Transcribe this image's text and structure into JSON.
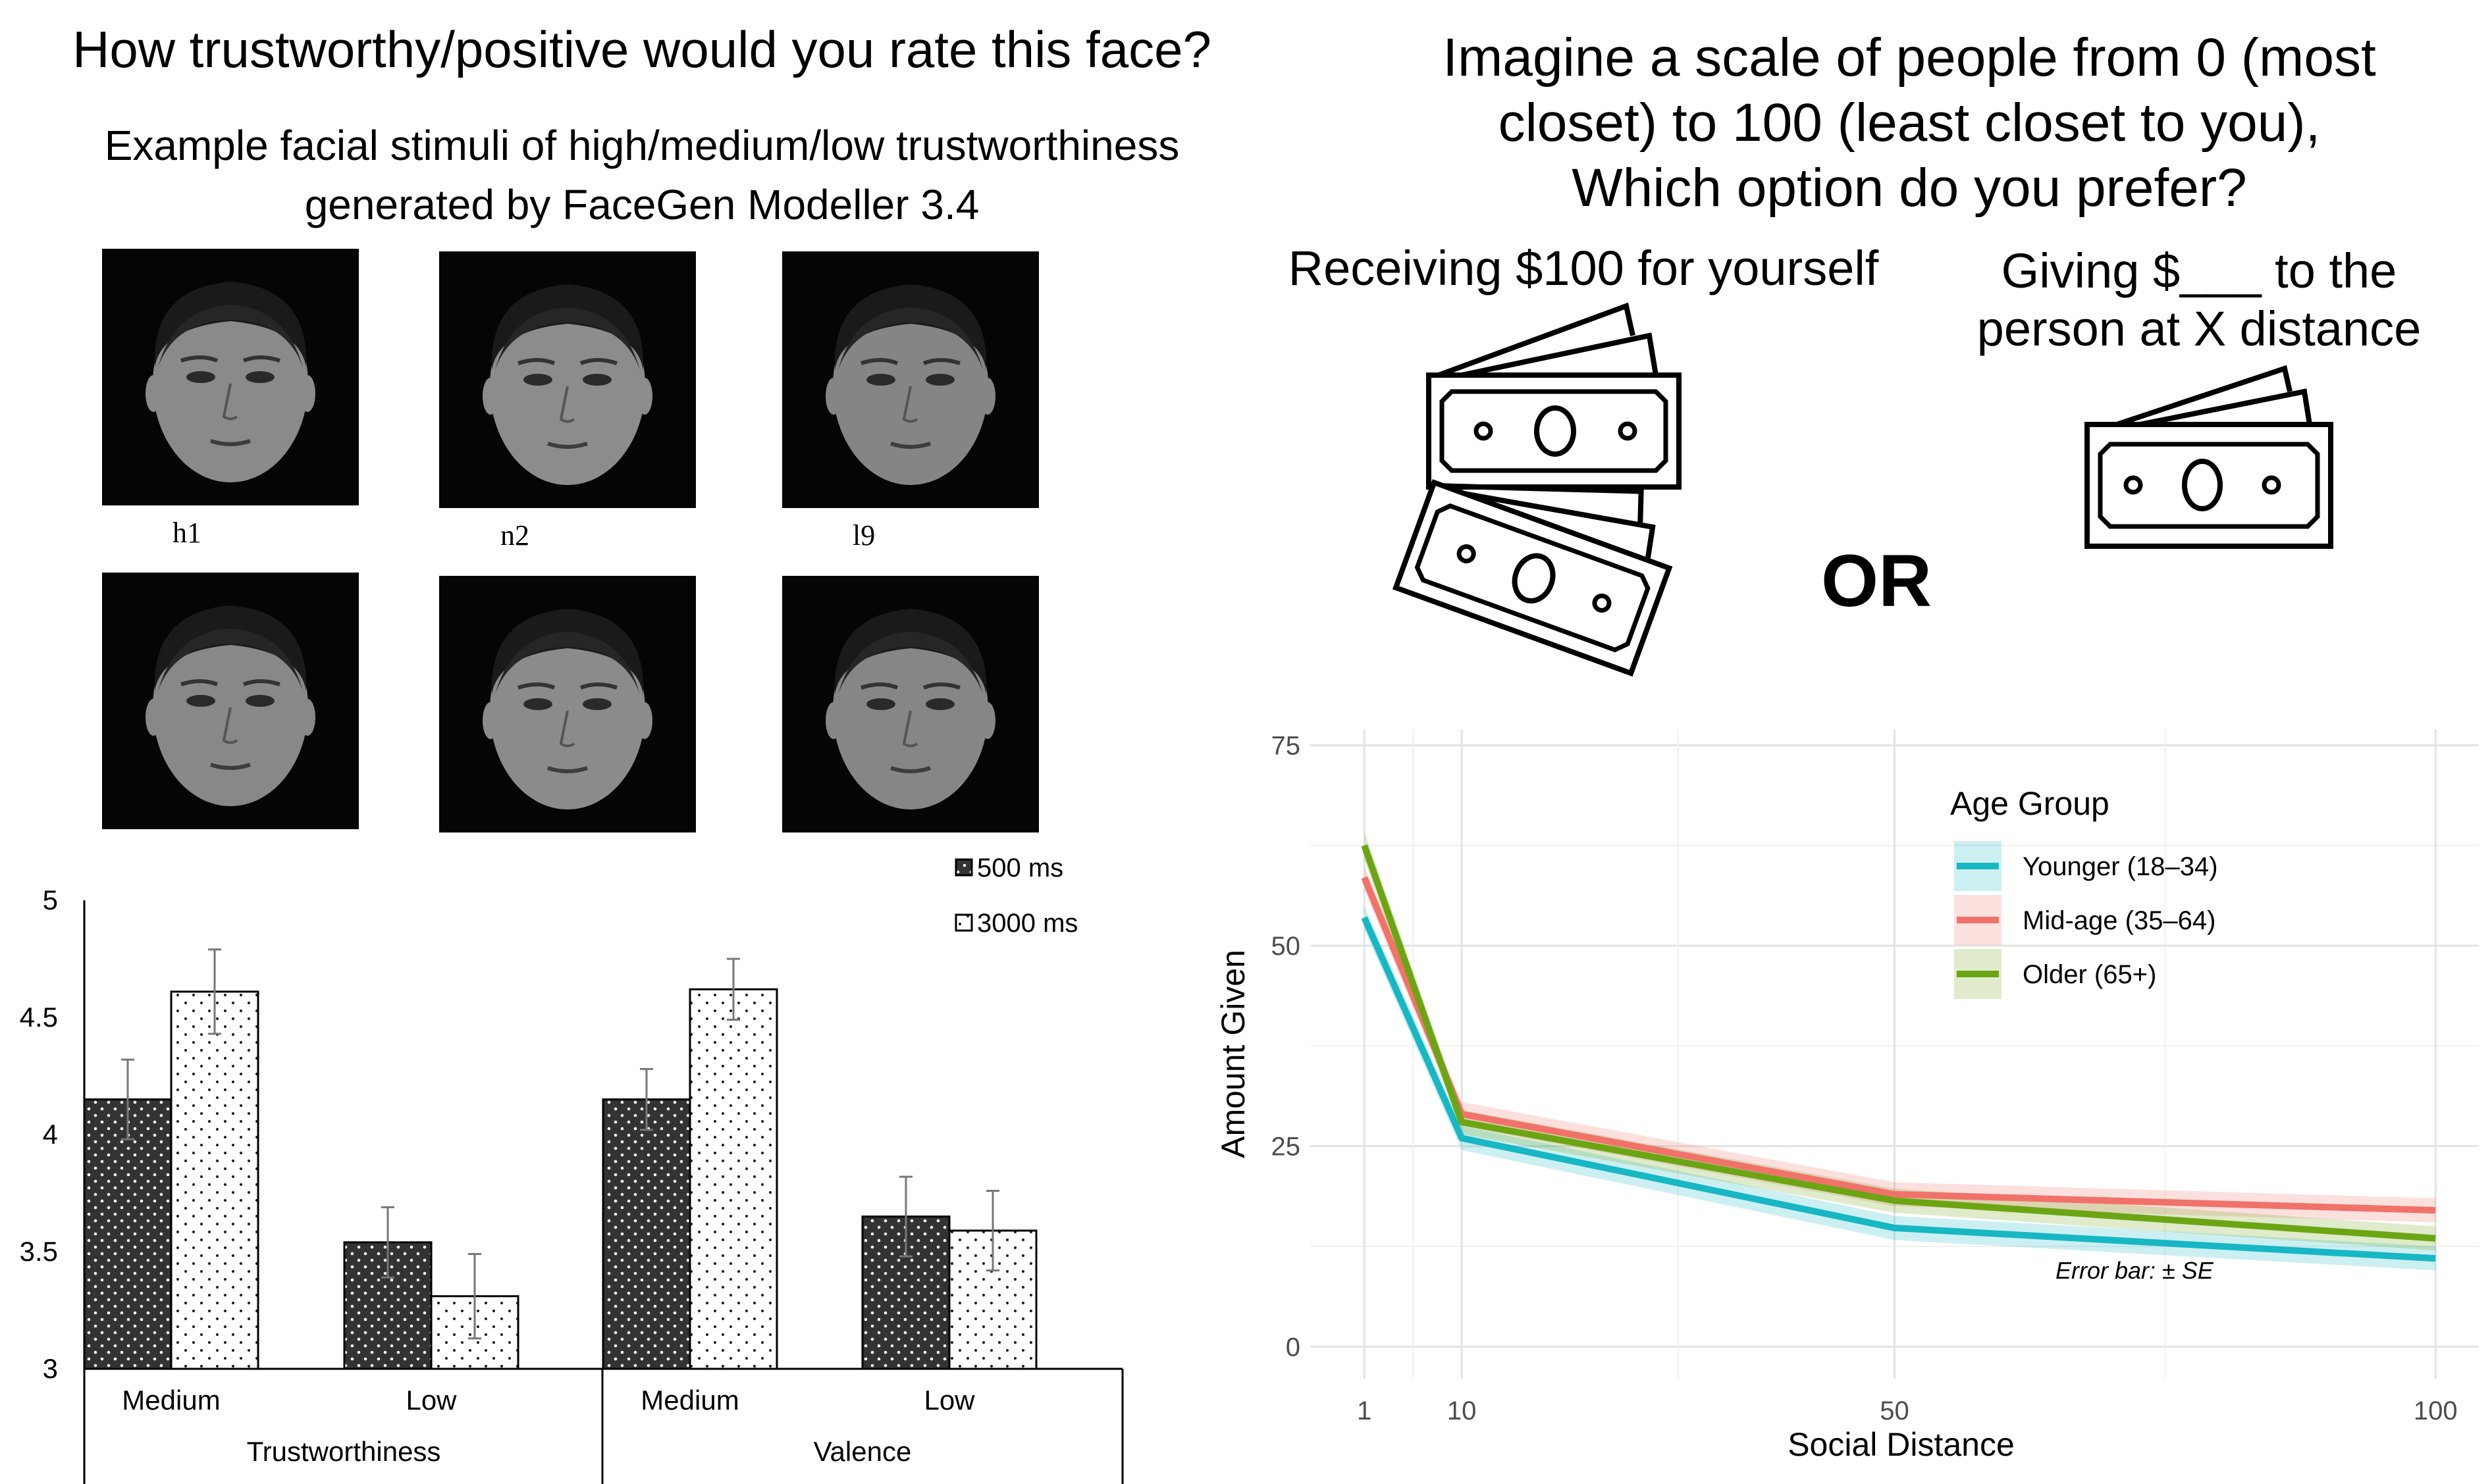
{
  "left_panel": {
    "title": "How trustworthy/positive would you rate this face?",
    "subtitle_line1": "Example facial stimuli of high/medium/low trustworthiness",
    "subtitle_line2": "generated by FaceGen Modeller 3.4",
    "face_labels": [
      "h1",
      "n2",
      "l9"
    ],
    "face_tone_colors": [
      "#8a8a8a",
      "#8c8c8c",
      "#858585",
      "#888888",
      "#8b8b8b",
      "#868686"
    ]
  },
  "right_panel": {
    "title_line1": "Imagine a scale of people from 0 (most",
    "title_line2": "closet) to 100 (least closet to you),",
    "title_line3": "Which option do you prefer?",
    "option_self": "Receiving $100 for yourself",
    "option_give_line1": "Giving $___ to the",
    "option_give_line2": "person at X distance",
    "or_label": "OR",
    "icon_names": [
      "money-stack-icon",
      "money-bill-icon"
    ]
  },
  "chart_data": [
    {
      "type": "bar",
      "y_tick_labels": [
        "5",
        "4.5",
        "4",
        "3.5",
        "3"
      ],
      "ylim": [
        3,
        5
      ],
      "categories": [
        "Medium",
        "Low",
        "Medium",
        "Low"
      ],
      "groups": [
        {
          "label": "Trustworthiness",
          "categories": [
            0,
            1
          ]
        },
        {
          "label": "Valence",
          "categories": [
            2,
            3
          ]
        }
      ],
      "series": [
        {
          "name": "500 ms",
          "color": "#333333",
          "values": [
            4.15,
            3.54,
            4.15,
            3.65
          ],
          "errors": [
            0.17,
            0.15,
            0.13,
            0.17
          ]
        },
        {
          "name": "3000 ms",
          "color": "#ffffff",
          "values": [
            4.61,
            3.31,
            4.62,
            3.59
          ],
          "errors": [
            0.18,
            0.18,
            0.13,
            0.17
          ]
        }
      ],
      "legend_position": "top-right",
      "grid": false
    },
    {
      "type": "line",
      "xlabel": "Social Distance",
      "ylabel": "Amount Given",
      "x": [
        1,
        10,
        50,
        100
      ],
      "x_tick_labels": [
        "1",
        "10",
        "50",
        "100"
      ],
      "y_tick_labels": [
        "0",
        "25",
        "50",
        "75"
      ],
      "xlim": [
        -4,
        104
      ],
      "ylim": [
        -4,
        77
      ],
      "grid": true,
      "legend_title": "Age Group",
      "legend_position": "top-right",
      "annotation": "Error bar: ± SE",
      "series": [
        {
          "name": "Younger (18–34)",
          "color": "#17b7c4",
          "values": [
            53.5,
            26,
            14.8,
            11
          ],
          "se": [
            1.5,
            1.5,
            1.5,
            1.5
          ]
        },
        {
          "name": "Mid-age (35–64)",
          "color": "#f07269",
          "values": [
            58.5,
            29,
            19,
            17
          ],
          "se": [
            1.5,
            1.5,
            1.5,
            1.5
          ]
        },
        {
          "name": "Older (65+)",
          "color": "#6ca514",
          "values": [
            62.5,
            28,
            18.2,
            13.5
          ],
          "se": [
            1.8,
            1.5,
            1.5,
            1.5
          ]
        }
      ]
    }
  ]
}
